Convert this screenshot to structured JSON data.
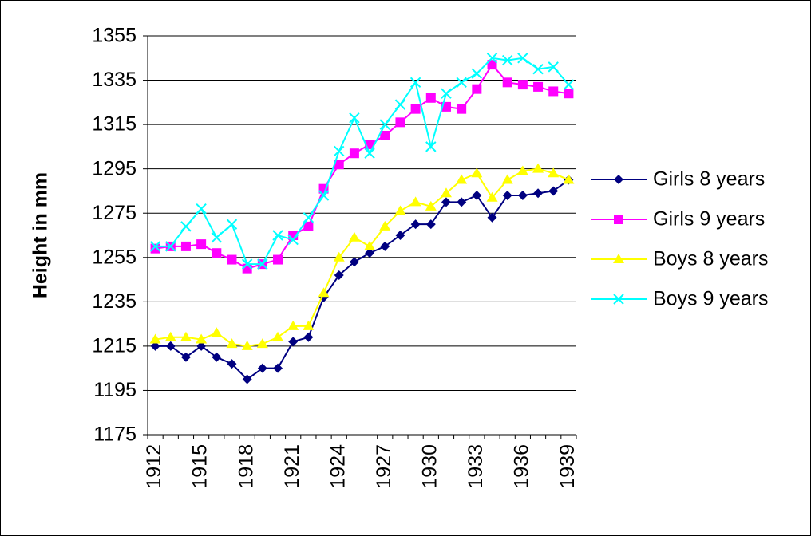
{
  "chart_data": {
    "type": "line",
    "y_label": "Height in mm",
    "categories": [
      "1912",
      null,
      null,
      "1915",
      null,
      null,
      "1918",
      null,
      null,
      "1921",
      null,
      null,
      "1924",
      null,
      null,
      "1927",
      null,
      null,
      "1930",
      null,
      null,
      "1933",
      null,
      null,
      "1936",
      null,
      null,
      "1939"
    ],
    "series": [
      {
        "name": "Girls 8 years",
        "color": "#000080",
        "marker": "diamond",
        "values": [
          1215,
          1215,
          1210,
          1215,
          1210,
          1207,
          1200,
          1205,
          1205,
          1217,
          1219,
          1237,
          1247,
          1253,
          1257,
          1260,
          1265,
          1270,
          1270,
          1280,
          1280,
          1283,
          1273,
          1283,
          1283,
          1284,
          1285,
          1290
        ]
      },
      {
        "name": "Girls 9 years",
        "color": "#ff00ff",
        "marker": "square",
        "values": [
          1259,
          1260,
          1260,
          1261,
          1257,
          1254,
          1250,
          1252,
          1254,
          1265,
          1269,
          1286,
          1297,
          1302,
          1306,
          1310,
          1316,
          1322,
          1327,
          1323,
          1322,
          1331,
          1342,
          1334,
          1333,
          1332,
          1330,
          1329
        ]
      },
      {
        "name": "Boys 8 years",
        "color": "#ffff00",
        "marker": "triangle",
        "values": [
          1218,
          1219,
          1219,
          1218,
          1221,
          1216,
          1215,
          1216,
          1219,
          1224,
          1224,
          1239,
          1255,
          1264,
          1260,
          1269,
          1276,
          1280,
          1278,
          1284,
          1290,
          1293,
          1282,
          1290,
          1294,
          1295,
          1293,
          1290
        ]
      },
      {
        "name": "Boys 9 years",
        "color": "#00ffff",
        "marker": "x",
        "values": [
          1260,
          1260,
          1269,
          1277,
          1264,
          1270,
          1252,
          1252,
          1265,
          1263,
          1273,
          1283,
          1303,
          1318,
          1302,
          1315,
          1324,
          1334,
          1305,
          1329,
          1334,
          1338,
          1345,
          1344,
          1345,
          1340,
          1341,
          1333
        ]
      }
    ],
    "ylim": [
      1175,
      1355
    ],
    "yticks": [
      1175,
      1195,
      1215,
      1235,
      1255,
      1275,
      1295,
      1315,
      1335,
      1355
    ],
    "grid": true,
    "legend": "right"
  }
}
